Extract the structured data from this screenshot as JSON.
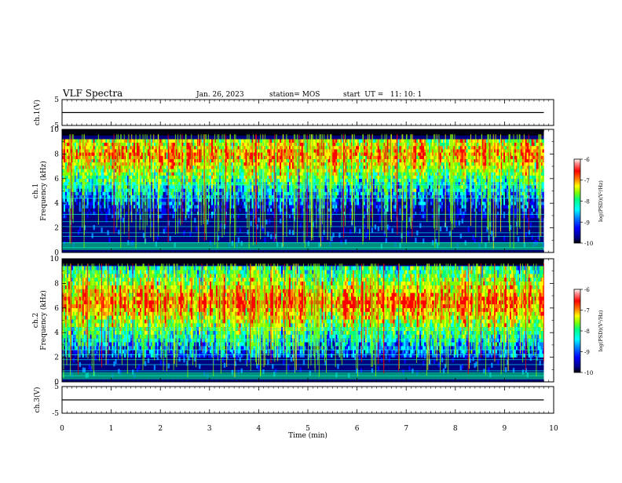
{
  "header": {
    "title": "VLF Spectra",
    "date": "Jan. 26, 2023",
    "station": "station= MOS",
    "start": "start  UT =   11: 10: 1"
  },
  "colors": {
    "colormap": [
      "#000000",
      "#00007f",
      "#0000ff",
      "#0080ff",
      "#00ffff",
      "#00ff80",
      "#7fff00",
      "#ffff00",
      "#ff8000",
      "#ff0000",
      "#ff7f7f",
      "#ffffff"
    ]
  },
  "chart_data": [
    {
      "type": "line",
      "name": "panel-ch1-voltage",
      "ylabel": "ch.1(V)",
      "ylim": [
        -5,
        5
      ],
      "yticks": [
        "5",
        "-5"
      ],
      "x": [
        0,
        9.8
      ],
      "values": [
        0,
        0
      ],
      "xlim": [
        0,
        10
      ]
    },
    {
      "type": "heatmap",
      "name": "panel-ch1-spectrogram",
      "ylabel_top": "ch.1",
      "ylabel": "Frequency (kHz)",
      "ylim": [
        0,
        10
      ],
      "yticks": [
        "0",
        "2",
        "4",
        "6",
        "8",
        "10"
      ],
      "xlim": [
        0,
        10
      ],
      "data_xmax": 9.8,
      "colorbar": {
        "label": "log(PSD)(V²/Hz)",
        "range": [
          -10,
          -6
        ],
        "ticks": [
          "-6",
          "-7",
          "-8",
          "-9",
          "-10"
        ]
      }
    },
    {
      "type": "heatmap",
      "name": "panel-ch2-spectrogram",
      "ylabel_top": "ch.2",
      "ylabel": "Frequency (kHz)",
      "ylim": [
        0,
        10
      ],
      "yticks": [
        "0",
        "2",
        "4",
        "6",
        "8",
        "10"
      ],
      "xlim": [
        0,
        10
      ],
      "data_xmax": 9.8,
      "colorbar": {
        "label": "log(PSD)(V²/Hz)",
        "range": [
          -10,
          -6
        ],
        "ticks": [
          "-6",
          "-7",
          "-8",
          "-9",
          "-10"
        ]
      }
    },
    {
      "type": "line",
      "name": "panel-ch3-voltage",
      "ylabel": "ch.3(V)",
      "ylim": [
        -5,
        5
      ],
      "yticks": [
        "5",
        "-5"
      ],
      "x": [
        0,
        9.8
      ],
      "values": [
        0,
        0
      ],
      "xlim": [
        0,
        10
      ],
      "xlabel": "Time (min)",
      "xticks": [
        "0",
        "1",
        "2",
        "3",
        "4",
        "5",
        "6",
        "7",
        "8",
        "9",
        "10"
      ]
    }
  ]
}
